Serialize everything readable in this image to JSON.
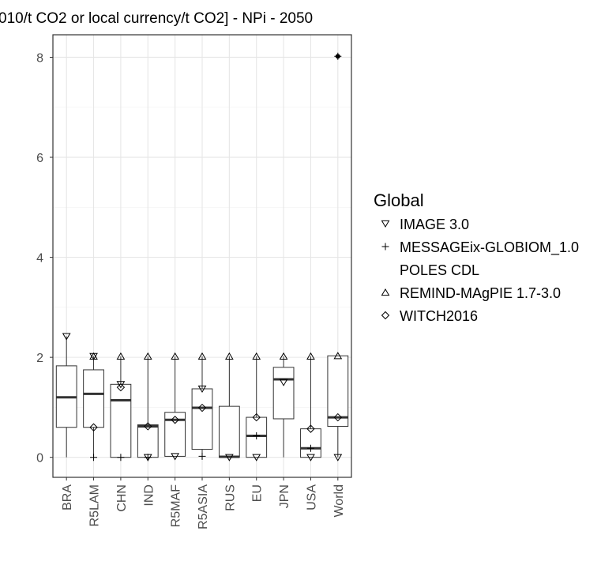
{
  "chart_data": {
    "type": "box",
    "title": "010/t CO2 or local currency/t CO2] - NPi - 2050",
    "xlabel": "",
    "ylabel": "",
    "ylim": [
      -0.4,
      8.45
    ],
    "yticks": [
      0,
      2,
      4,
      6,
      8
    ],
    "grid": true,
    "legend_position": "right",
    "categories": [
      "BRA",
      "R5LAM",
      "CHN",
      "IND",
      "R5MAF",
      "R5ASIA",
      "RUS",
      "EU",
      "JPN",
      "USA",
      "World"
    ],
    "boxes": [
      {
        "min": 0.0,
        "q1": 0.6,
        "median": 1.2,
        "q3": 1.83,
        "max": 2.42
      },
      {
        "min": 0.0,
        "q1": 0.6,
        "median": 1.27,
        "q3": 1.75,
        "max": 2.02
      },
      {
        "min": 0.0,
        "q1": 0.0,
        "median": 1.14,
        "q3": 1.46,
        "max": 2.02
      },
      {
        "min": 0.0,
        "q1": 0.0,
        "median": 0.62,
        "q3": 0.65,
        "max": 2.02
      },
      {
        "min": 0.02,
        "q1": 0.02,
        "median": 0.75,
        "q3": 0.9,
        "max": 2.02
      },
      {
        "min": 0.02,
        "q1": 0.16,
        "median": 0.99,
        "q3": 1.37,
        "max": 2.02
      },
      {
        "min": 0.0,
        "q1": 0.0,
        "median": 0.01,
        "q3": 1.02,
        "max": 2.02
      },
      {
        "min": 0.0,
        "q1": 0.0,
        "median": 0.43,
        "q3": 0.8,
        "max": 2.02
      },
      {
        "min": 0.0,
        "q1": 0.77,
        "median": 1.56,
        "q3": 1.8,
        "max": 2.02
      },
      {
        "min": 0.0,
        "q1": 0.0,
        "median": 0.18,
        "q3": 0.57,
        "max": 2.02
      },
      {
        "min": 0.0,
        "q1": 0.62,
        "median": 0.8,
        "q3": 2.03,
        "max": 2.03
      }
    ],
    "outliers": [
      {
        "category": "World",
        "value": 8.02
      }
    ],
    "series": [
      {
        "name": "IMAGE 3.0",
        "shape": "triangle-down",
        "values": [
          2.42,
          2.02,
          1.46,
          0.0,
          0.02,
          1.37,
          0.0,
          0.0,
          1.5,
          0.0,
          0.0
        ]
      },
      {
        "name": "MESSAGEix-GLOBIOM_1.0",
        "shape": "plus",
        "values": [
          null,
          0.0,
          0.0,
          0.0,
          null,
          0.02,
          null,
          0.43,
          null,
          0.18,
          8.02
        ]
      },
      {
        "name": "POLES CDL",
        "shape": "none",
        "values": [
          null,
          null,
          null,
          null,
          null,
          null,
          null,
          null,
          null,
          null,
          null
        ]
      },
      {
        "name": "REMIND-MAgPIE 1.7-3.0",
        "shape": "triangle-up",
        "values": [
          null,
          2.02,
          2.02,
          2.02,
          2.02,
          2.02,
          2.02,
          2.02,
          2.02,
          2.02,
          2.03
        ]
      },
      {
        "name": "WITCH2016",
        "shape": "diamond",
        "values": [
          null,
          0.6,
          1.4,
          0.62,
          0.75,
          0.99,
          null,
          0.8,
          null,
          0.57,
          0.8
        ]
      }
    ],
    "legend_title": "Global"
  }
}
